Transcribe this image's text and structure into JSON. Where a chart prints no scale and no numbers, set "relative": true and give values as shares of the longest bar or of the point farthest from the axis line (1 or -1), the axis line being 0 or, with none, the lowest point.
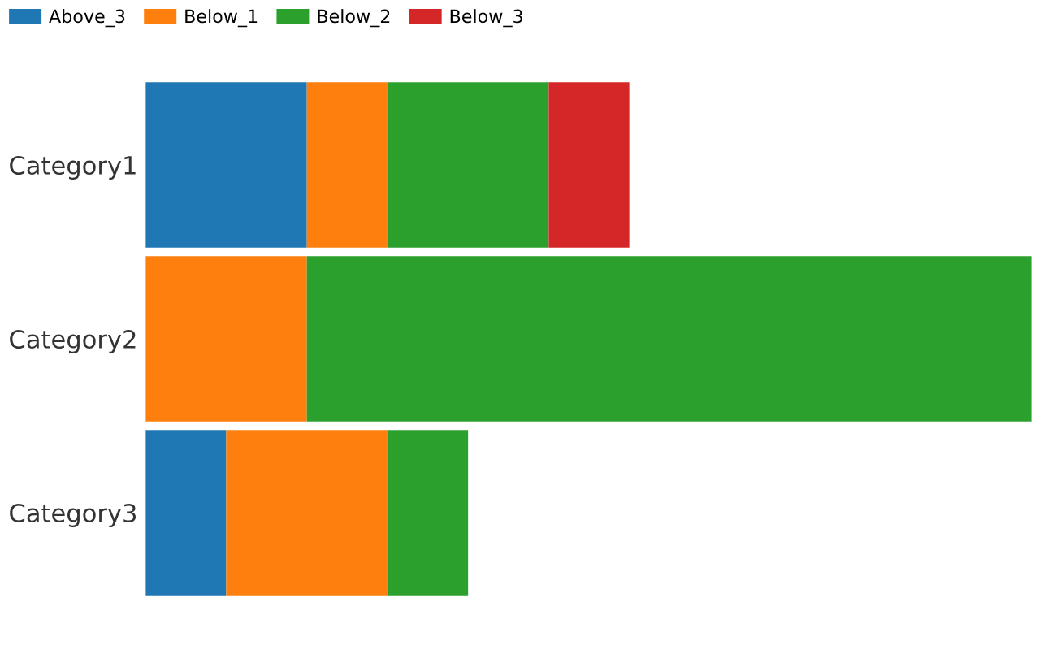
{
  "chart_data": {
    "type": "bar",
    "orientation": "horizontal",
    "stacked": true,
    "relative": true,
    "legend": "top left",
    "grid": false,
    "categories": [
      "Category1",
      "Category2",
      "Category3"
    ],
    "series": [
      {
        "name": "Above_3",
        "color": "#1f77b4",
        "values": [
          0.182,
          null,
          0.091
        ]
      },
      {
        "name": "Below_1",
        "color": "#ff7f0e",
        "values": [
          0.091,
          0.182,
          0.182
        ]
      },
      {
        "name": "Below_2",
        "color": "#2ca02c",
        "values": [
          0.182,
          0.818,
          0.091
        ]
      },
      {
        "name": "Below_3",
        "color": "#d62728",
        "values": [
          0.091,
          null,
          null
        ]
      }
    ]
  }
}
